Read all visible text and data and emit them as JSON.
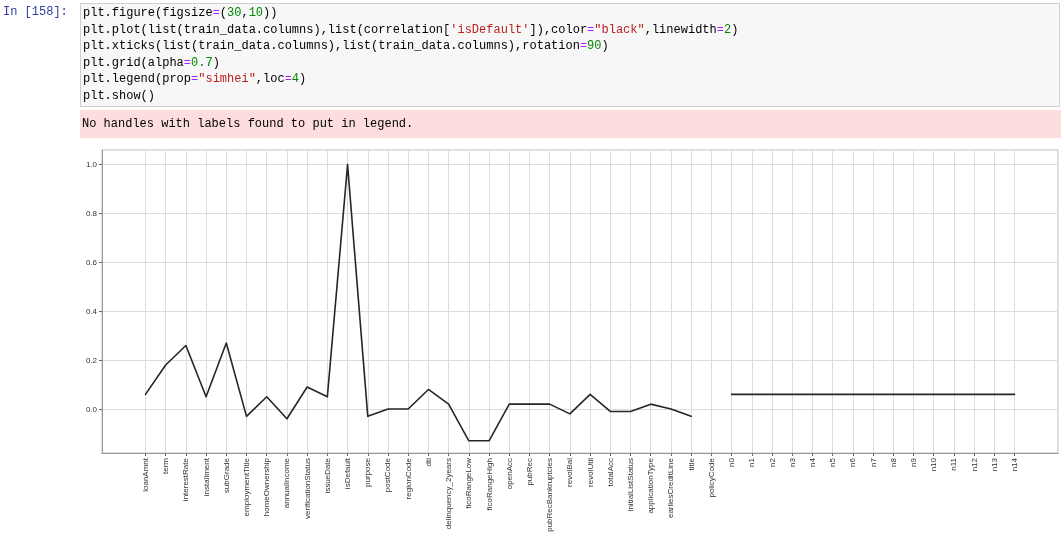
{
  "chart_data": {
    "type": "line",
    "categories": [
      "loanAmnt",
      "term",
      "interestRate",
      "installment",
      "subGrade",
      "employmentTitle",
      "homeOwnership",
      "annualIncome",
      "verificationStatus",
      "issueDate",
      "isDefault",
      "purpose",
      "postCode",
      "regionCode",
      "dti",
      "delinquency_2years",
      "ficoRangeLow",
      "ficoRangeHigh",
      "openAcc",
      "pubRec",
      "pubRecBankruptcies",
      "revolBal",
      "revolUtil",
      "totalAcc",
      "initialListStatus",
      "applicationType",
      "earliesCreditLine",
      "title",
      "policyCode",
      "n0",
      "n1",
      "n2",
      "n3",
      "n4",
      "n5",
      "n6",
      "n7",
      "n8",
      "n9",
      "n10",
      "n11",
      "n12",
      "n13",
      "n14"
    ],
    "values": [
      0.06,
      0.18,
      0.26,
      0.05,
      0.27,
      -0.03,
      0.05,
      -0.04,
      0.09,
      0.05,
      1.0,
      -0.03,
      0.0,
      0.0,
      0.08,
      0.02,
      -0.13,
      -0.13,
      0.02,
      0.02,
      0.02,
      -0.02,
      0.06,
      -0.01,
      -0.01,
      0.02,
      0.0,
      -0.03,
      null,
      0.06,
      0.06,
      0.06,
      0.06,
      0.06,
      0.06,
      0.06,
      0.06,
      0.06,
      0.06,
      0.06,
      0.06,
      0.06,
      0.06,
      0.06
    ],
    "color": "#262626",
    "ylim": [
      -0.18,
      1.06
    ],
    "yticks": [
      {
        "value": 0,
        "label": "0.0"
      },
      0.2,
      0.4,
      0.6,
      0.8,
      {
        "value": 1,
        "label": "1.0"
      }
    ],
    "grid": true,
    "marker": "none",
    "line_style": "solid",
    "annotations": [
      "In [158]:",
      "plt.figure(figsize=(30,10))",
      "plt.plot(list(train_data.columns),list(correlation['isDefault']),color=\"black\",linewidth=2)",
      "plt.xticks(list(train_data.columns),list(train_data.columns),rotation=90)",
      "plt.grid(alpha=0.7)",
      "plt.legend(prop=\"simhei\",loc=4)",
      "plt.show()",
      "No handles with labels found to put in legend."
    ]
  }
}
